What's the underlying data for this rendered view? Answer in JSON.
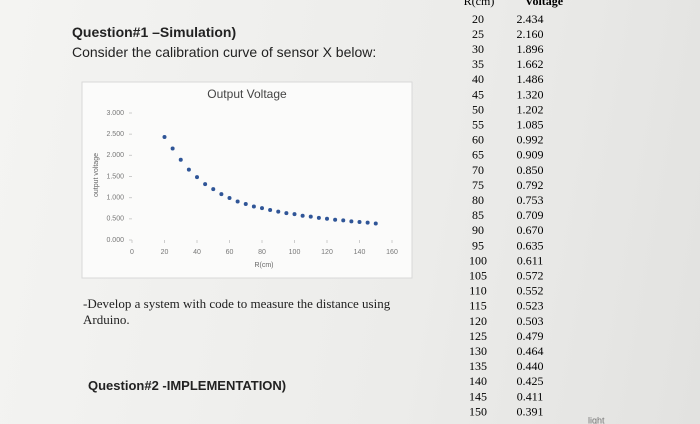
{
  "question1": {
    "title": "Question#1 –Simulation)",
    "text": "Consider the calibration curve of sensor X below:"
  },
  "chart_data": {
    "type": "scatter",
    "title": "Output Voltage",
    "x_label": "R(cm)",
    "y_label": "output voltage",
    "color": "#2f5597",
    "x": [
      20,
      25,
      30,
      35,
      40,
      45,
      50,
      55,
      60,
      65,
      70,
      75,
      80,
      85,
      90,
      95,
      100,
      105,
      110,
      115,
      120,
      125,
      130,
      135,
      140,
      145,
      150
    ],
    "values": [
      2.434,
      2.16,
      1.896,
      1.662,
      1.486,
      1.32,
      1.202,
      1.085,
      0.992,
      0.909,
      0.85,
      0.792,
      0.753,
      0.709,
      0.67,
      0.635,
      0.611,
      0.572,
      0.552,
      0.523,
      0.503,
      0.479,
      0.464,
      0.44,
      0.425,
      0.411,
      0.391
    ],
    "xlim": [
      0,
      160
    ],
    "xticks": [
      0,
      20,
      40,
      60,
      80,
      100,
      120,
      140,
      160
    ],
    "ylim": [
      0,
      3
    ],
    "yticks": [
      {
        "value": 0,
        "label": "0.000"
      },
      {
        "value": 0.5,
        "label": "0.500"
      },
      {
        "value": 1,
        "label": "1.000"
      },
      {
        "value": 1.5,
        "label": "1.500"
      },
      {
        "value": 2,
        "label": "2.000"
      },
      {
        "value": 2.5,
        "label": "2.500"
      },
      {
        "value": 3,
        "label": "3.000"
      }
    ]
  },
  "table": {
    "header": [
      "R(cm)",
      "Voltage"
    ],
    "rows": [
      [
        "20",
        "2.434"
      ],
      [
        "25",
        "2.160"
      ],
      [
        "30",
        "1.896"
      ],
      [
        "35",
        "1.662"
      ],
      [
        "40",
        "1.486"
      ],
      [
        "45",
        "1.320"
      ],
      [
        "50",
        "1.202"
      ],
      [
        "55",
        "1.085"
      ],
      [
        "60",
        "0.992"
      ],
      [
        "65",
        "0.909"
      ],
      [
        "70",
        "0.850"
      ],
      [
        "75",
        "0.792"
      ],
      [
        "80",
        "0.753"
      ],
      [
        "85",
        "0.709"
      ],
      [
        "90",
        "0.670"
      ],
      [
        "95",
        "0.635"
      ],
      [
        "100",
        "0.611"
      ],
      [
        "105",
        "0.572"
      ],
      [
        "110",
        "0.552"
      ],
      [
        "115",
        "0.523"
      ],
      [
        "120",
        "0.503"
      ],
      [
        "125",
        "0.479"
      ],
      [
        "130",
        "0.464"
      ],
      [
        "135",
        "0.440"
      ],
      [
        "140",
        "0.425"
      ],
      [
        "145",
        "0.411"
      ],
      [
        "150",
        "0.391"
      ]
    ]
  },
  "task": "-Develop a system with code to measure the distance using Arduino.",
  "question2": "Question#2 -IMPLEMENTATION)",
  "corner_text": "light"
}
